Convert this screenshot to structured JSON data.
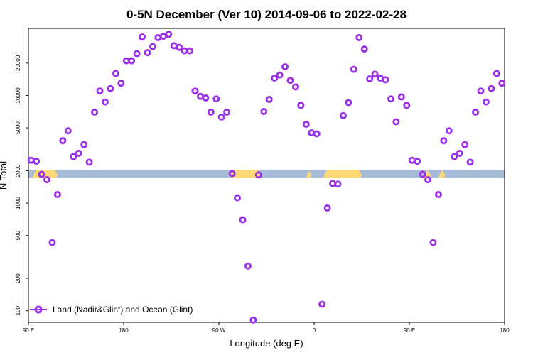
{
  "chart_data": {
    "type": "scatter",
    "title": "0-5N December (Ver 10)   2014-09-06 to 2022-02-28",
    "xlabel": "Longitude (deg E)",
    "ylabel": "N Total",
    "y_scale": "log",
    "xlim": [
      90,
      450
    ],
    "ylim": [
      78,
      42000
    ],
    "x_ticks": [
      {
        "value": 90,
        "label": "90 E"
      },
      {
        "value": 162,
        "label": "180"
      },
      {
        "value": 234,
        "label": "90 W"
      },
      {
        "value": 306,
        "label": "0"
      },
      {
        "value": 378,
        "label": "90 E"
      },
      {
        "value": 450,
        "label": "180"
      }
    ],
    "y_ticks": [
      {
        "value": 100,
        "label": "100"
      },
      {
        "value": 200,
        "label": "200"
      },
      {
        "value": 500,
        "label": "500"
      },
      {
        "value": 1000,
        "label": "1000"
      },
      {
        "value": 2000,
        "label": "2000"
      },
      {
        "value": 5000,
        "label": "5000"
      },
      {
        "value": 10000,
        "label": "10000"
      },
      {
        "value": 20000,
        "label": "20000"
      }
    ],
    "land_band": {
      "y_low": 1720,
      "y_high": 2030,
      "ocean_color": "#a6bbd7",
      "land_color": "#fcd877",
      "land_segments": [
        [
          93,
          112
        ],
        [
          242,
          266
        ],
        [
          300,
          304
        ],
        [
          313,
          342
        ],
        [
          389,
          394
        ],
        [
          400,
          405
        ]
      ]
    },
    "series": [
      {
        "name": "Land (Nadir&Glint) and Ocean (Glint)",
        "color": "#9b30e8",
        "x": [
          92,
          96,
          100,
          104,
          108,
          112,
          116,
          120,
          124,
          128,
          132,
          136,
          140,
          144,
          148,
          152,
          156,
          160,
          164,
          168,
          172,
          176,
          180,
          184,
          188,
          192,
          196,
          200,
          204,
          208,
          212,
          216,
          220,
          224,
          228,
          232,
          236,
          240,
          244,
          248,
          252,
          256,
          260,
          264,
          268,
          272,
          276,
          280,
          284,
          288,
          292,
          296,
          300,
          304,
          308,
          312,
          316,
          320,
          324,
          328,
          332,
          336,
          340,
          344,
          348,
          352,
          356,
          360,
          364,
          368,
          372,
          376,
          380,
          384,
          388,
          392,
          396,
          400,
          404,
          408,
          412,
          416,
          420,
          424,
          428,
          432,
          436,
          440,
          444,
          448
        ],
        "y": [
          2500,
          2450,
          1850,
          1650,
          430,
          1200,
          3800,
          4700,
          2700,
          2900,
          3500,
          2400,
          7000,
          11000,
          8700,
          11600,
          16000,
          13000,
          21000,
          21000,
          24500,
          35000,
          25000,
          28500,
          34500,
          35500,
          37000,
          29000,
          28000,
          26000,
          26000,
          11000,
          9800,
          9500,
          7000,
          9300,
          6300,
          7000,
          1880,
          1120,
          700,
          260,
          82,
          1830,
          7100,
          9200,
          14500,
          15500,
          18500,
          13800,
          12000,
          8100,
          5400,
          4500,
          4400,
          115,
          900,
          1520,
          1500,
          6500,
          8600,
          17500,
          34500,
          27000,
          14300,
          15800,
          14500,
          14000,
          9300,
          5700,
          9700,
          8100,
          2500,
          2450,
          1850,
          1650,
          430,
          1200,
          3800,
          4700,
          2700,
          2900,
          3500,
          2400,
          7000,
          11000,
          8700,
          11600,
          16000,
          13000
        ]
      }
    ],
    "legend_position": "bottom-left"
  }
}
